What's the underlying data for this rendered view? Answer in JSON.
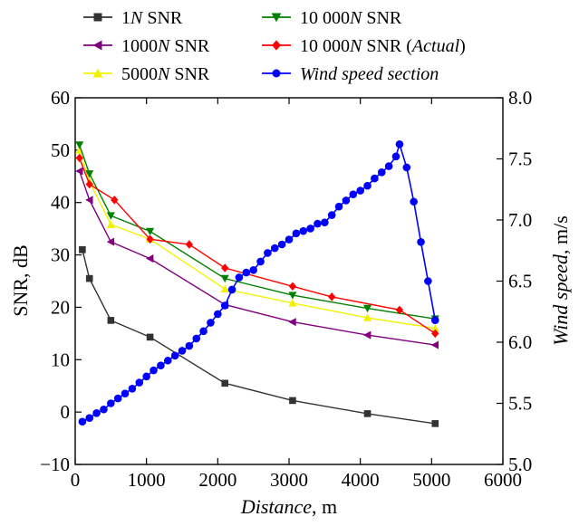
{
  "chart_data": {
    "type": "line",
    "title": "",
    "xlabel": {
      "italic": "Distance",
      "unit": ", m"
    },
    "ylabel_left": "SNR, dB",
    "ylabel_right": {
      "italic": "Wind speed",
      "unit": ", m/s"
    },
    "xlim": [
      0,
      6000
    ],
    "ylim_left": [
      -10,
      60
    ],
    "ylim_right": [
      5.0,
      8.0
    ],
    "x_ticks": [
      "0",
      "1000",
      "2000",
      "3000",
      "4000",
      "5000",
      "6000"
    ],
    "y_ticks_left": [
      "−10",
      "0",
      "10",
      "20",
      "30",
      "40",
      "50",
      "60"
    ],
    "y_ticks_right": [
      "5.0",
      "5.5",
      "6.0",
      "6.5",
      "7.0",
      "7.5",
      "8.0"
    ],
    "grid": false,
    "legend_position": "top",
    "series": [
      {
        "name": "1N SNR",
        "legend": {
          "pre": "1",
          "it": "N",
          "post": " SNR"
        },
        "axis": "left",
        "color": "#333333",
        "marker": "square",
        "x": [
          100,
          200,
          500,
          1050,
          2100,
          3050,
          4100,
          5050
        ],
        "y": [
          31,
          25.5,
          17.5,
          14.3,
          5.5,
          2.2,
          -0.3,
          -2.2
        ]
      },
      {
        "name": "1000N SNR",
        "legend": {
          "pre": "1000",
          "it": "N",
          "post": " SNR"
        },
        "axis": "left",
        "color": "#800080",
        "marker": "triangle-left",
        "x": [
          60,
          200,
          500,
          1050,
          2100,
          3050,
          4100,
          5050
        ],
        "y": [
          46,
          40.5,
          32.5,
          29.3,
          20.5,
          17.2,
          14.7,
          12.8
        ]
      },
      {
        "name": "5000N SNR",
        "legend": {
          "pre": "5000",
          "it": "N",
          "post": " SNR"
        },
        "axis": "left",
        "color": "#f2f200",
        "marker": "triangle-up",
        "x": [
          60,
          200,
          500,
          1050,
          2100,
          3050,
          4100,
          5050
        ],
        "y": [
          50,
          44,
          35.8,
          33,
          23.5,
          20.8,
          18,
          16
        ]
      },
      {
        "name": "10000N SNR",
        "legend": {
          "pre": "10 000",
          "it": "N",
          "post": " SNR"
        },
        "axis": "left",
        "color": "#008000",
        "marker": "triangle-down",
        "x": [
          60,
          200,
          500,
          1050,
          2100,
          3050,
          4100,
          5050
        ],
        "y": [
          51,
          45.5,
          37.5,
          34.5,
          25.5,
          22.3,
          19.8,
          17.8
        ]
      },
      {
        "name": "10000N SNR (Actual)",
        "legend": {
          "pre": "10 000",
          "it": "N",
          "post": " SNR (",
          "it2": "Actual",
          "post2": ")"
        },
        "axis": "left",
        "color": "#ff0000",
        "marker": "diamond",
        "x": [
          60,
          200,
          550,
          1050,
          1600,
          2100,
          3050,
          3600,
          4550,
          5050
        ],
        "y": [
          48.5,
          43.5,
          40.5,
          33,
          32,
          27.5,
          24,
          22,
          19.5,
          15
        ]
      },
      {
        "name": "Wind speed section",
        "legend": {
          "it": "Wind speed section"
        },
        "axis": "right",
        "color": "#0000ff",
        "marker": "circle",
        "x": [
          100,
          200,
          300,
          400,
          500,
          600,
          700,
          800,
          900,
          1000,
          1100,
          1200,
          1300,
          1400,
          1500,
          1600,
          1700,
          1800,
          1900,
          2000,
          2100,
          2200,
          2300,
          2400,
          2500,
          2600,
          2700,
          2800,
          2900,
          3000,
          3100,
          3200,
          3300,
          3400,
          3500,
          3600,
          3700,
          3800,
          3900,
          4000,
          4100,
          4200,
          4300,
          4400,
          4500,
          4550,
          4650,
          4750,
          4850,
          4950,
          5050
        ],
        "y": [
          5.35,
          5.38,
          5.42,
          5.45,
          5.5,
          5.54,
          5.58,
          5.62,
          5.67,
          5.72,
          5.77,
          5.81,
          5.85,
          5.89,
          5.93,
          5.97,
          6.03,
          6.09,
          6.16,
          6.23,
          6.3,
          6.43,
          6.53,
          6.57,
          6.59,
          6.66,
          6.73,
          6.77,
          6.8,
          6.84,
          6.89,
          6.91,
          6.93,
          6.97,
          6.98,
          7.04,
          7.11,
          7.16,
          7.21,
          7.24,
          7.28,
          7.34,
          7.39,
          7.44,
          7.52,
          7.62,
          7.43,
          7.15,
          6.82,
          6.5,
          6.18
        ]
      }
    ]
  }
}
